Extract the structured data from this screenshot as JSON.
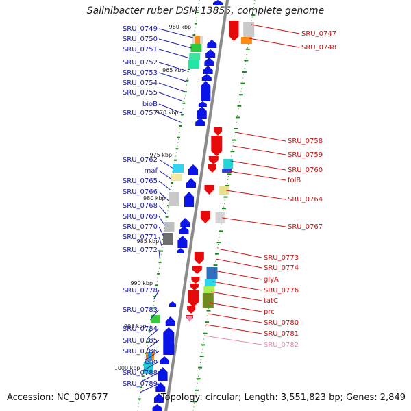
{
  "title": "Salinibacter ruber DSM 13855, complete genome",
  "accession": "Accession: NC_007677",
  "topology": "Topology: circular; Length: 3,551,823 bp; Genes: 2,849",
  "colors": {
    "left_label": "#1a1aaa",
    "right_label": "#cc1111",
    "faded_label": "#e98ab5",
    "forward_gene": "#0a14e6",
    "reverse_gene": "#e60a0a",
    "backbone": "#8a8a8a",
    "ticks": "#1a8a1a"
  },
  "kbp_markers": [
    "960 kbp",
    "965 kbp",
    "970 kbp",
    "975 kbp",
    "980 kbp",
    "985 kbp",
    "990 kbp",
    "995 kbp",
    "1000 kbp"
  ],
  "left_labels": [
    "SRU_0749",
    "SRU_0750",
    "SRU_0751",
    "SRU_0752",
    "SRU_0753",
    "SRU_0754",
    "SRU_0755",
    "bioB",
    "SRU_0757",
    "SRU_0762",
    "maf",
    "SRU_0765",
    "SRU_0766",
    "SRU_0768",
    "SRU_0769",
    "SRU_0770",
    "SRU_0771",
    "SRU_0772",
    "SRU_0778",
    "SRU_0783",
    "SRU_0784",
    "SRU_0785",
    "SRU_0786",
    "eno",
    "SRU_0788",
    "SRU_0789"
  ],
  "right_labels": [
    "SRU_0747",
    "SRU_0748",
    "SRU_0758",
    "SRU_0759",
    "SRU_0760",
    "folB",
    "SRU_0764",
    "SRU_0767",
    "SRU_0773",
    "SRU_0774",
    "glyA",
    "SRU_0776",
    "tatC",
    "prc",
    "SRU_0780",
    "SRU_0781",
    "SRU_0782"
  ]
}
